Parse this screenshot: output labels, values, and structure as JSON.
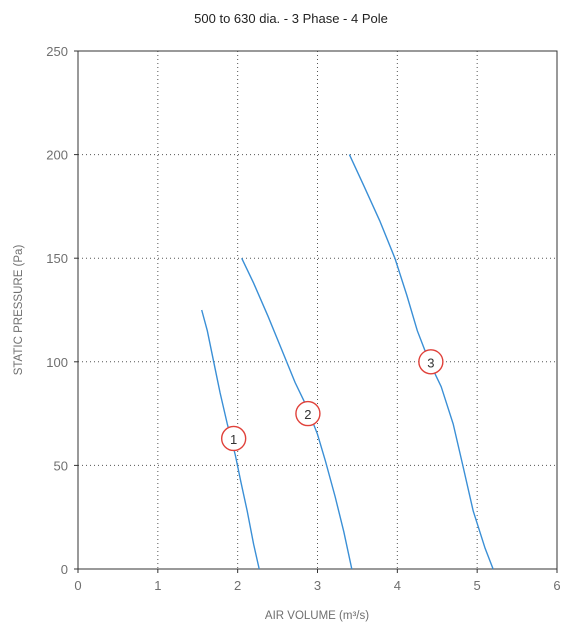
{
  "chart_data": {
    "type": "line",
    "title": "500 to 630 dia. - 3 Phase - 4 Pole",
    "xlabel": "AIR VOLUME (m³/s)",
    "ylabel": "STATIC PRESSURE (Pa)",
    "xlim": [
      0,
      6
    ],
    "ylim": [
      0,
      250
    ],
    "xticks": [
      0,
      1,
      2,
      3,
      4,
      5,
      6
    ],
    "yticks": [
      0,
      50,
      100,
      150,
      200,
      250
    ],
    "grid": true,
    "line_color": "#3a8fd6",
    "marker_color": "#e0413a",
    "series": [
      {
        "marker_label": "1",
        "marker_at": [
          1.95,
          63
        ],
        "points": [
          [
            1.55,
            125
          ],
          [
            1.62,
            115
          ],
          [
            1.7,
            100
          ],
          [
            1.78,
            85
          ],
          [
            1.87,
            70
          ],
          [
            1.97,
            55
          ],
          [
            2.04,
            42
          ],
          [
            2.12,
            28
          ],
          [
            2.2,
            12
          ],
          [
            2.27,
            0
          ]
        ]
      },
      {
        "marker_label": "2",
        "marker_at": [
          2.88,
          75
        ],
        "points": [
          [
            2.05,
            150
          ],
          [
            2.2,
            138
          ],
          [
            2.38,
            122
          ],
          [
            2.55,
            106
          ],
          [
            2.72,
            90
          ],
          [
            2.87,
            78
          ],
          [
            3.0,
            65
          ],
          [
            3.1,
            52
          ],
          [
            3.22,
            35
          ],
          [
            3.33,
            18
          ],
          [
            3.43,
            0
          ]
        ]
      },
      {
        "marker_label": "3",
        "marker_at": [
          4.42,
          100
        ],
        "points": [
          [
            3.4,
            200
          ],
          [
            3.58,
            185
          ],
          [
            3.78,
            168
          ],
          [
            3.97,
            150
          ],
          [
            4.12,
            132
          ],
          [
            4.25,
            115
          ],
          [
            4.4,
            100
          ],
          [
            4.55,
            88
          ],
          [
            4.7,
            70
          ],
          [
            4.82,
            50
          ],
          [
            4.95,
            28
          ],
          [
            5.1,
            10
          ],
          [
            5.2,
            0
          ]
        ]
      }
    ]
  }
}
